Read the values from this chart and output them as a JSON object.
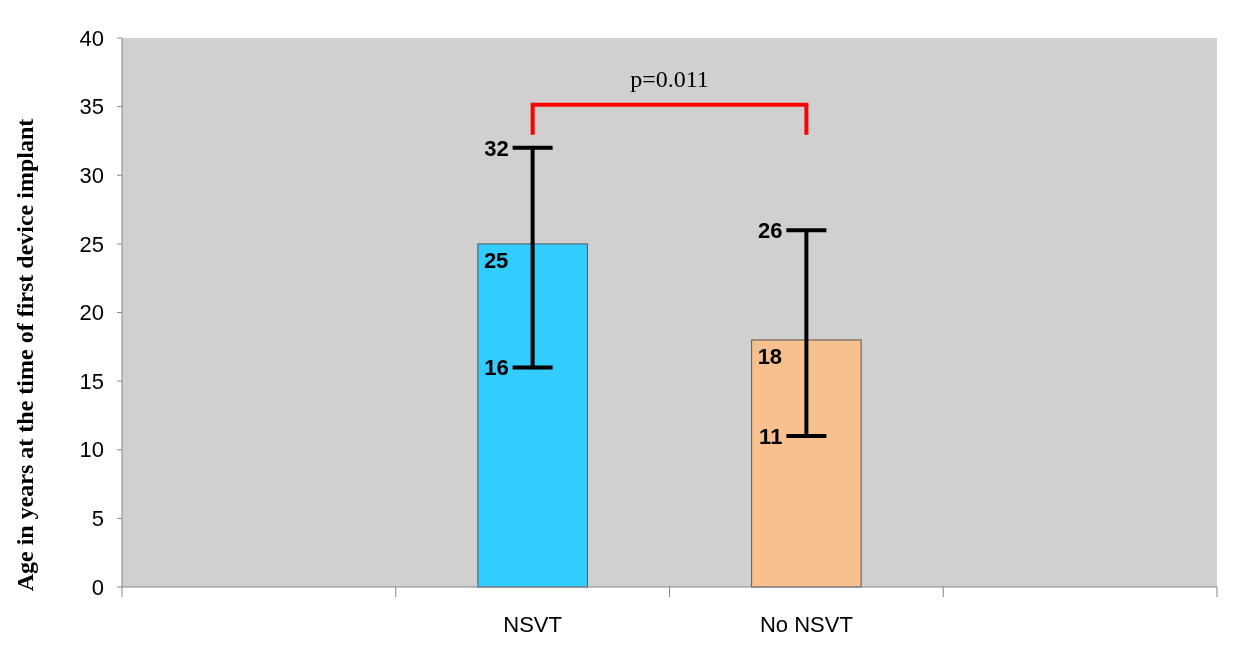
{
  "chart_data": {
    "type": "bar",
    "ylabel": "Age in years at the time of first device implant",
    "categories": [
      null,
      "NSVT",
      "No NSVT",
      null
    ],
    "values": [
      null,
      25,
      18,
      null
    ],
    "colors": [
      null,
      "#33ccff",
      "#f9c08f",
      null
    ],
    "errors": [
      null,
      [
        16,
        32
      ],
      [
        11,
        26
      ],
      null
    ],
    "value_labels": [
      null,
      "25",
      "18",
      null
    ],
    "ylim": [
      0,
      40
    ],
    "yticks": [
      0,
      5,
      10,
      15,
      20,
      25,
      30,
      35,
      40
    ],
    "grid": false,
    "annotations": [
      "p=0.011",
      {
        "text": "32",
        "x": "NSVT",
        "y": 32
      },
      {
        "text": "16",
        "x": "NSVT",
        "y": 16
      },
      {
        "text": "26",
        "x": "No NSVT",
        "y": 26
      },
      {
        "text": "11",
        "x": "No NSVT",
        "y": 11
      }
    ]
  }
}
